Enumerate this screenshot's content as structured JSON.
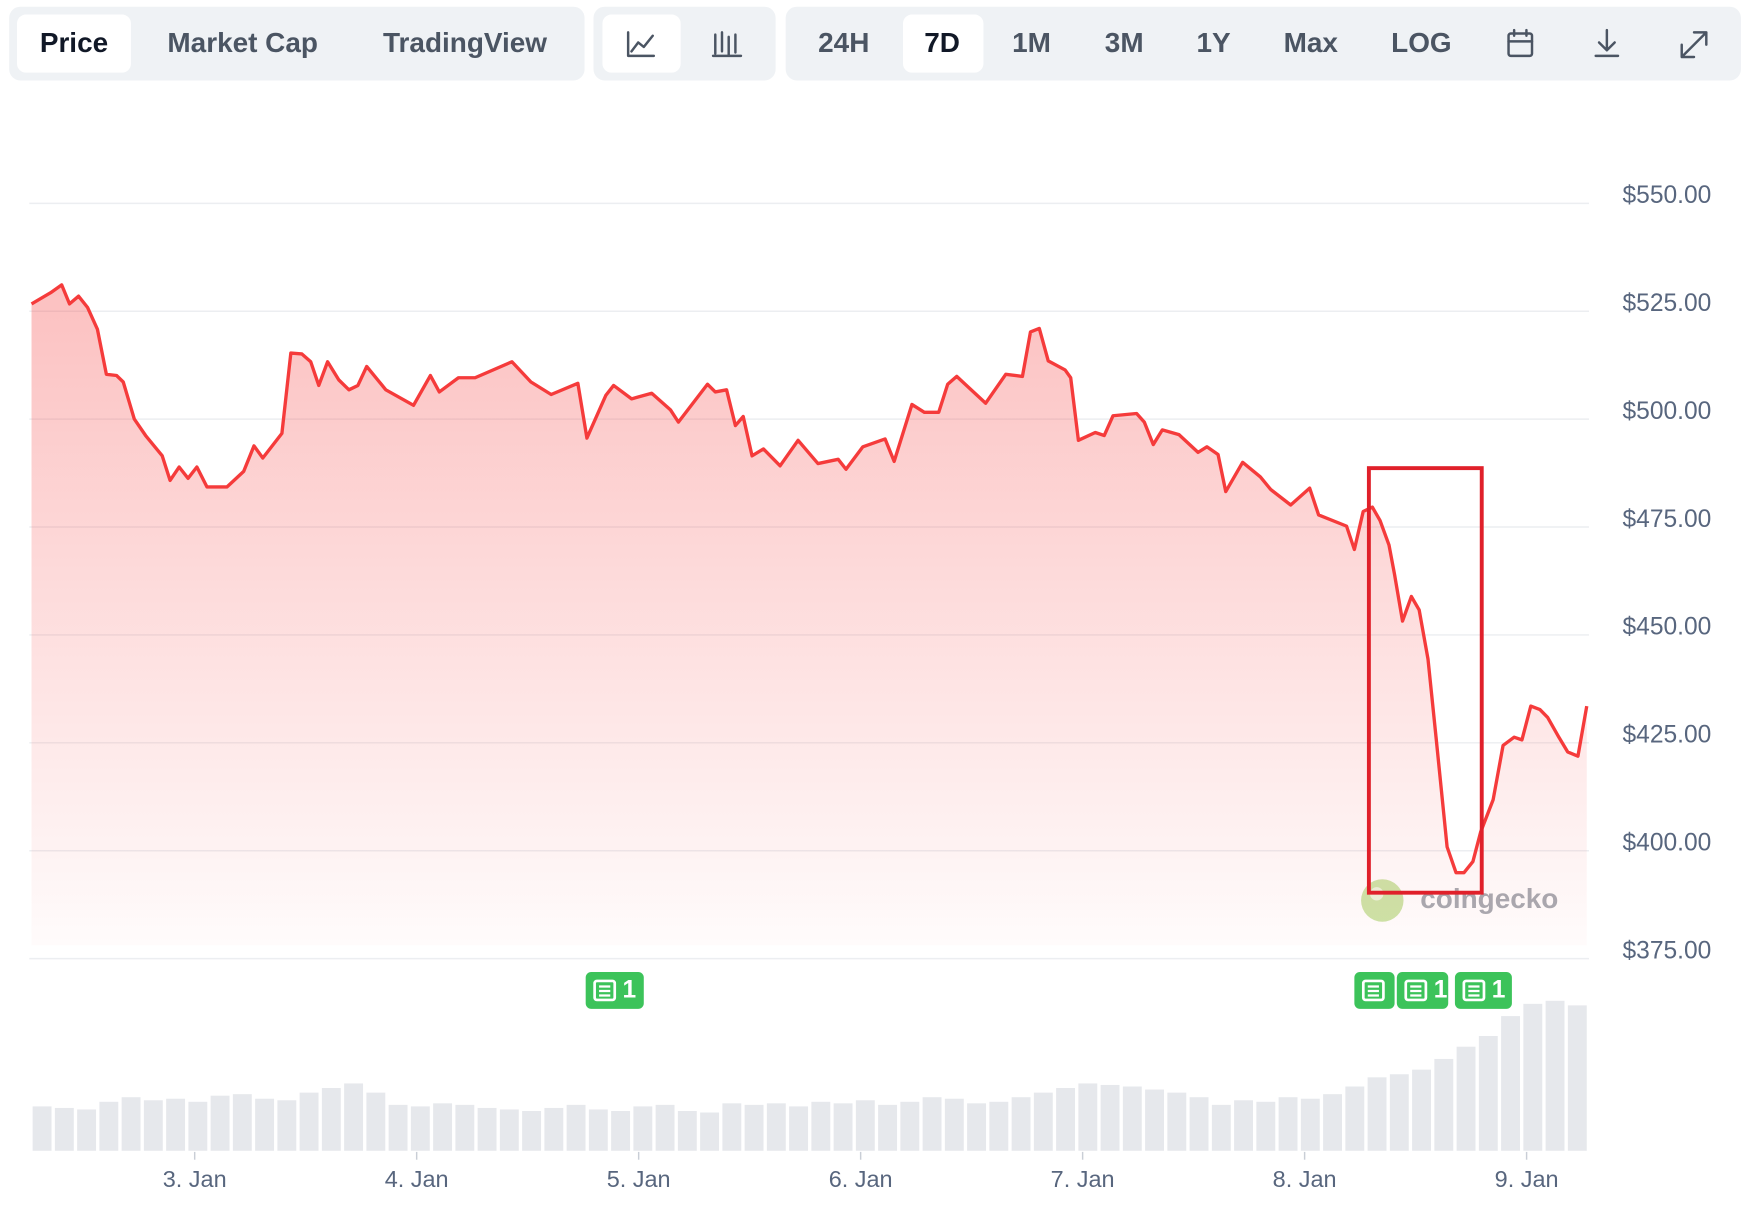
{
  "toolbar": {
    "views": [
      "Price",
      "Market Cap",
      "TradingView"
    ],
    "ranges": [
      "24H",
      "7D",
      "1M",
      "3M",
      "1Y",
      "Max"
    ],
    "scale": "LOG"
  },
  "chart_data": {
    "type": "area",
    "color": "#f53b3b",
    "x": [
      2.265,
      2.351,
      2.401,
      2.436,
      2.477,
      2.517,
      2.562,
      2.602,
      2.648,
      2.678,
      2.728,
      2.779,
      2.854,
      2.889,
      2.93,
      2.97,
      3.01,
      3.055,
      3.146,
      3.221,
      3.267,
      3.307,
      3.393,
      3.433,
      3.483,
      3.523,
      3.559,
      3.599,
      3.649,
      3.695,
      3.735,
      3.775,
      3.861,
      3.986,
      4.062,
      4.102,
      4.188,
      4.263,
      4.429,
      4.515,
      4.606,
      4.726,
      4.767,
      4.852,
      4.887,
      4.968,
      5.059,
      5.144,
      5.179,
      5.31,
      5.345,
      5.396,
      5.436,
      5.471,
      5.511,
      5.562,
      5.637,
      5.718,
      5.808,
      5.899,
      5.934,
      6.01,
      6.11,
      6.151,
      6.231,
      6.287,
      6.352,
      6.392,
      6.433,
      6.563,
      6.654,
      6.729,
      6.765,
      6.805,
      6.845,
      6.921,
      6.946,
      6.981,
      7.057,
      7.097,
      7.137,
      7.243,
      7.278,
      7.318,
      7.359,
      7.434,
      7.52,
      7.56,
      7.61,
      7.645,
      7.721,
      7.801,
      7.847,
      7.937,
      8.023,
      8.063,
      8.189,
      8.224,
      8.264,
      8.305,
      8.34,
      8.38,
      8.405,
      8.441,
      8.481,
      8.516,
      8.556,
      8.592,
      8.642,
      8.682,
      8.718,
      8.758,
      8.793,
      8.849,
      8.894,
      8.944,
      8.979,
      9.019,
      9.06,
      9.095,
      9.145,
      9.185,
      9.231,
      9.271
    ],
    "values": [
      526.7,
      529.3,
      531.1,
      526.7,
      528.5,
      525.9,
      520.8,
      510.4,
      510.1,
      508.6,
      500.0,
      496.2,
      491.5,
      485.8,
      488.9,
      486.3,
      488.9,
      484.3,
      484.3,
      487.9,
      493.8,
      491.0,
      496.7,
      515.3,
      515.1,
      513.3,
      507.8,
      513.3,
      509.1,
      506.8,
      507.8,
      512.2,
      506.8,
      503.2,
      510.1,
      506.3,
      509.6,
      509.6,
      513.3,
      508.6,
      505.7,
      508.3,
      495.6,
      505.5,
      507.8,
      504.7,
      506.0,
      502.1,
      499.3,
      508.1,
      506.3,
      506.8,
      498.5,
      500.6,
      491.5,
      493.1,
      489.2,
      495.1,
      489.7,
      490.7,
      488.4,
      493.6,
      495.4,
      490.2,
      503.4,
      501.6,
      501.6,
      508.1,
      509.9,
      503.7,
      510.4,
      509.9,
      520.2,
      521.0,
      513.5,
      511.4,
      509.6,
      495.1,
      496.9,
      496.2,
      500.8,
      501.3,
      499.3,
      494.1,
      497.5,
      496.4,
      492.3,
      493.6,
      491.8,
      483.2,
      490.0,
      486.6,
      483.7,
      480.1,
      484.0,
      477.8,
      475.2,
      469.8,
      478.6,
      479.6,
      476.5,
      470.8,
      464.1,
      453.2,
      458.9,
      455.8,
      444.4,
      426.3,
      400.9,
      394.9,
      394.9,
      397.5,
      404.3,
      411.8,
      424.4,
      426.3,
      425.7,
      433.5,
      432.7,
      430.9,
      426.3,
      422.9,
      421.9,
      433.5
    ],
    "xlim": [
      2.265,
      9.271
    ],
    "xticks": [
      {
        "value": 3,
        "label": "3. Jan"
      },
      {
        "value": 4,
        "label": "4. Jan"
      },
      {
        "value": 5,
        "label": "5. Jan"
      },
      {
        "value": 6,
        "label": "6. Jan"
      },
      {
        "value": 7,
        "label": "7. Jan"
      },
      {
        "value": 8,
        "label": "8. Jan"
      },
      {
        "value": 9,
        "label": "9. Jan"
      }
    ],
    "ylim": [
      375,
      550
    ],
    "yticks": [
      {
        "value": 375,
        "label": "$375.00"
      },
      {
        "value": 400,
        "label": "$400.00"
      },
      {
        "value": 425,
        "label": "$425.00"
      },
      {
        "value": 450,
        "label": "$450.00"
      },
      {
        "value": 475,
        "label": "$475.00"
      },
      {
        "value": 500,
        "label": "$500.00"
      },
      {
        "value": 525,
        "label": "$525.00"
      },
      {
        "value": 550,
        "label": "$550.00"
      }
    ],
    "grid": true,
    "volume": {
      "color": "#e6e8ec",
      "ylim": [
        0,
        100
      ],
      "values": [
        29,
        28,
        27,
        32,
        35,
        33,
        34,
        32,
        36,
        37,
        34,
        33,
        38,
        41,
        44,
        38,
        30,
        29,
        31,
        30,
        28,
        27,
        26,
        28,
        30,
        27,
        26,
        29,
        30,
        26,
        25,
        31,
        30,
        31,
        29,
        32,
        31,
        33,
        30,
        32,
        35,
        34,
        31,
        32,
        35,
        38,
        41,
        44,
        43,
        42,
        40,
        38,
        35,
        30,
        33,
        32,
        35,
        34,
        37,
        42,
        48,
        50,
        53,
        60,
        68,
        75,
        88,
        96,
        98,
        95
      ]
    },
    "news_badges": [
      "1",
      "1",
      "1"
    ],
    "watermark": "coingecko"
  }
}
